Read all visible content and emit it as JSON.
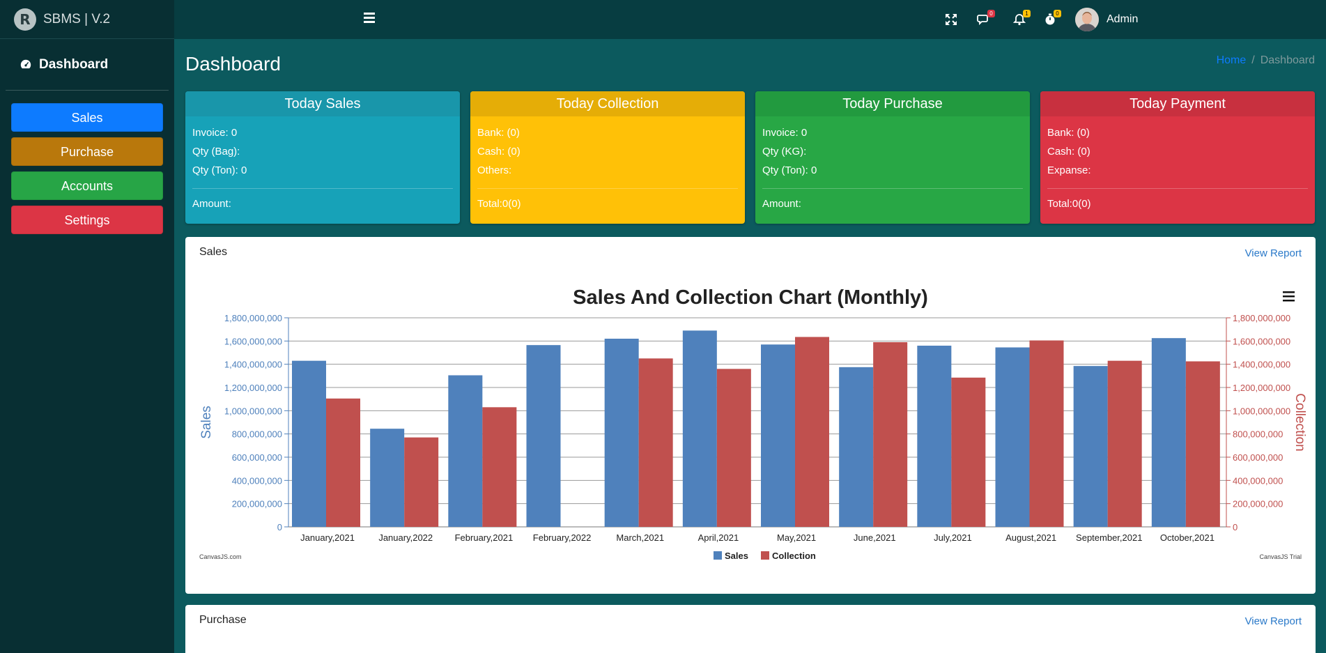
{
  "brand": {
    "logo_letter": "R",
    "title": "SBMS | V.2"
  },
  "sidebar": {
    "dashboard_label": "Dashboard",
    "items": [
      {
        "label": "Sales",
        "color": "#0d7bff"
      },
      {
        "label": "Purchase",
        "color": "#b9780c"
      },
      {
        "label": "Accounts",
        "color": "#27a546"
      },
      {
        "label": "Settings",
        "color": "#dc3545"
      }
    ]
  },
  "header": {
    "user_name": "Admin",
    "badges": {
      "messages": "0",
      "notifications": "1",
      "timers": "0"
    },
    "icons": [
      "menu-icon",
      "fullscreen-icon",
      "comments-icon",
      "bell-icon",
      "stopwatch-icon"
    ]
  },
  "page": {
    "title": "Dashboard",
    "breadcrumb": {
      "home": "Home",
      "sep": "/",
      "current": "Dashboard"
    }
  },
  "cards": [
    {
      "title": "Today Sales",
      "head_color": "#1996aa",
      "body_color": "#17a2b8",
      "lines": [
        "Invoice: 0",
        "Qty (Bag):",
        "Qty (Ton): 0"
      ],
      "footer": "Amount:"
    },
    {
      "title": "Today Collection",
      "head_color": "#e5ad07",
      "body_color": "#ffc107",
      "lines": [
        "Bank: (0)",
        "Cash: (0)",
        "Others:"
      ],
      "footer": "Total:0(0)"
    },
    {
      "title": "Today Purchase",
      "head_color": "#229a3f",
      "body_color": "#28a745",
      "lines": [
        "Invoice: 0",
        "Qty (KG):",
        "Qty (Ton): 0"
      ],
      "footer": "Amount:"
    },
    {
      "title": "Today Payment",
      "head_color": "#c8303f",
      "body_color": "#dc3545",
      "lines": [
        "Bank: (0)",
        "Cash: (0)",
        "Expanse:"
      ],
      "footer": "Total:0(0)"
    }
  ],
  "sales_panel": {
    "title": "Sales",
    "link": "View Report"
  },
  "purchase_panel": {
    "title": "Purchase",
    "link": "View Report"
  },
  "chart_data": {
    "type": "bar",
    "title": "Sales And Collection Chart (Monthly)",
    "categories": [
      "January,2021",
      "January,2022",
      "February,2021",
      "February,2022",
      "March,2021",
      "April,2021",
      "May,2021",
      "June,2021",
      "July,2021",
      "August,2021",
      "September,2021",
      "October,2021"
    ],
    "series": [
      {
        "name": "Sales",
        "color": "#4f81bc",
        "values": [
          1430000000,
          845000000,
          1305000000,
          1565000000,
          1620000000,
          1690000000,
          1570000000,
          1375000000,
          1560000000,
          1545000000,
          1385000000,
          1625000000
        ]
      },
      {
        "name": "Collection",
        "color": "#c0504e",
        "values": [
          1105000000,
          770000000,
          1030000000,
          0,
          1450000000,
          1360000000,
          1635000000,
          1590000000,
          1285000000,
          1605000000,
          1430000000,
          1425000000
        ]
      }
    ],
    "ylabel": "Sales",
    "y2label": "Collection",
    "ylim": [
      0,
      1800000000
    ],
    "yticks": [
      "0",
      "200,000,000",
      "400,000,000",
      "600,000,000",
      "800,000,000",
      "1,000,000,000",
      "1,200,000,000",
      "1,400,000,000",
      "1,600,000,000",
      "1,800,000,000"
    ],
    "grid": true,
    "legend": "bottom-center",
    "credit_left": "CanvasJS.com",
    "credit_right": "CanvasJS Trial"
  }
}
